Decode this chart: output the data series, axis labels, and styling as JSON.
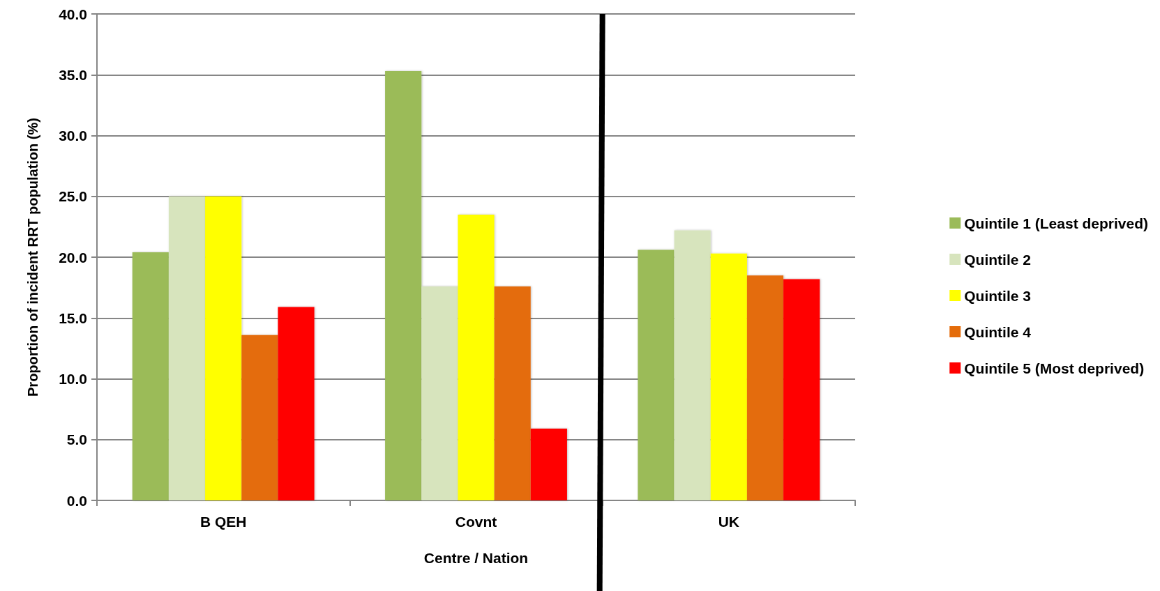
{
  "chart_data": {
    "type": "bar",
    "xlabel": "Centre / Nation",
    "ylabel": "Proportion of incident RRT population (%)",
    "categories": [
      "B QEH",
      "Covnt",
      "UK"
    ],
    "series": [
      {
        "name": "Quintile 1 (Least deprived)",
        "color": "#9bbb59",
        "values": [
          20.4,
          35.3,
          20.6
        ]
      },
      {
        "name": "Quintile 2",
        "color": "#d7e4bd",
        "values": [
          25.0,
          17.6,
          22.2
        ]
      },
      {
        "name": "Quintile 3",
        "color": "#ffff00",
        "values": [
          25.0,
          23.5,
          20.3
        ]
      },
      {
        "name": "Quintile 4",
        "color": "#e46c0a",
        "values": [
          13.6,
          17.6,
          18.5
        ]
      },
      {
        "name": "Quintile 5 (Most deprived)",
        "color": "#ff0000",
        "values": [
          15.9,
          5.9,
          18.2
        ]
      }
    ],
    "ylim": [
      0,
      40
    ],
    "yticks": [
      {
        "value": 0,
        "label": "0.0"
      },
      {
        "value": 5,
        "label": "5.0"
      },
      {
        "value": 10,
        "label": "10.0"
      },
      {
        "value": 15,
        "label": "15.0"
      },
      {
        "value": 20,
        "label": "20.0"
      },
      {
        "value": 25,
        "label": "25.0"
      },
      {
        "value": 30,
        "label": "30.0"
      },
      {
        "value": 35,
        "label": "35.0"
      },
      {
        "value": 40,
        "label": "40.0"
      }
    ],
    "grid": "y",
    "legend": "right"
  }
}
